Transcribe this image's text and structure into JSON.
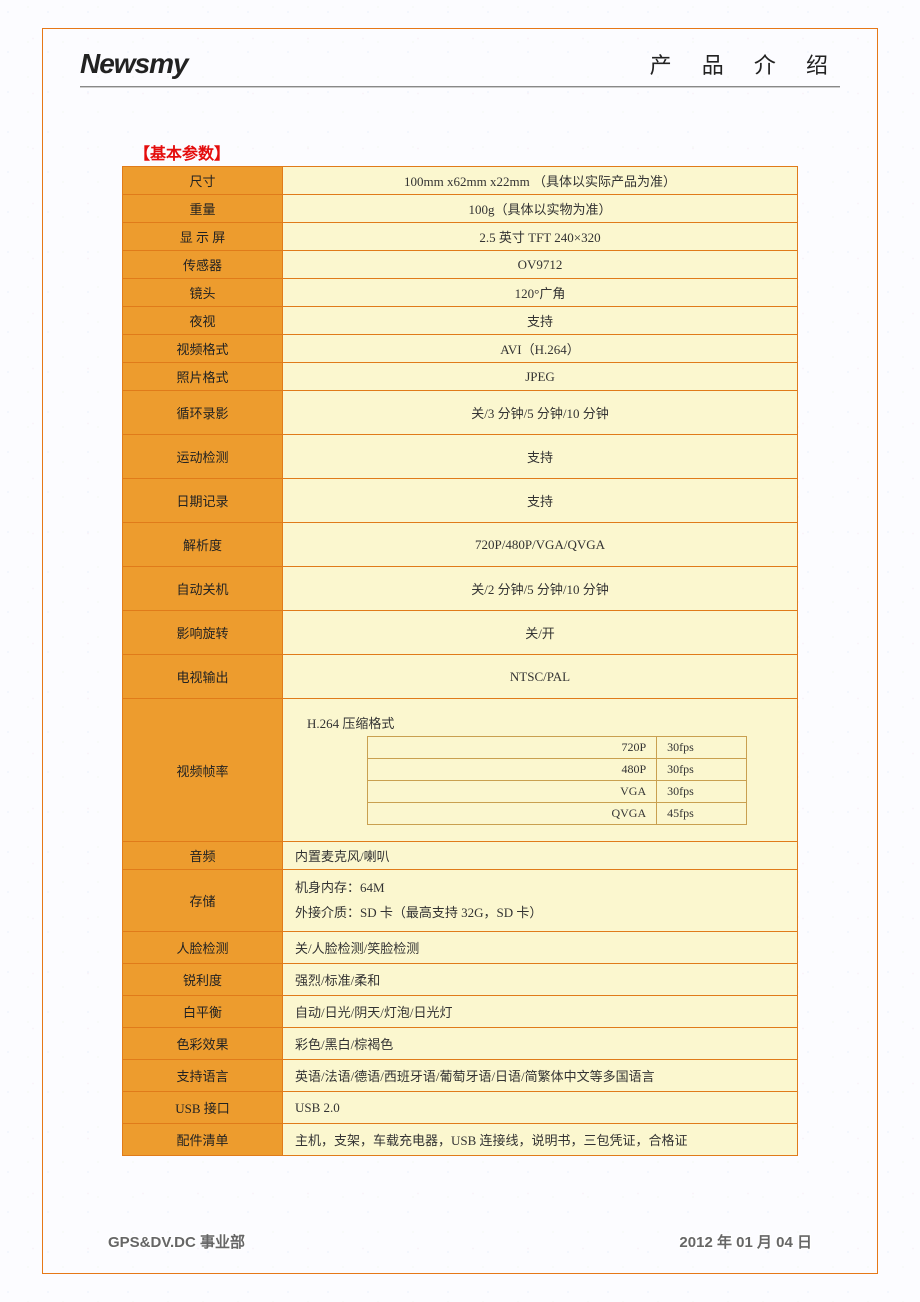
{
  "header": {
    "brand": "Newsmy",
    "title": "产 品 介 绍"
  },
  "section_title": "【基本参数】",
  "specs": [
    {
      "label": "尺寸",
      "value": "100mm x62mm x22mm （具体以实际产品为准）",
      "height": "short"
    },
    {
      "label": "重量",
      "value": "100g（具体以实物为准）",
      "height": "short"
    },
    {
      "label": "显 示 屏",
      "value": "2.5 英寸 TFT 240×320",
      "height": "short"
    },
    {
      "label": "传感器",
      "value": "OV9712",
      "height": "short"
    },
    {
      "label": "镜头",
      "value": "120°广角",
      "height": "short"
    },
    {
      "label": "夜视",
      "value": "支持",
      "height": "short"
    },
    {
      "label": "视频格式",
      "value": "AVI（H.264）",
      "height": "short"
    },
    {
      "label": "照片格式",
      "value": "JPEG",
      "height": "short"
    },
    {
      "label": "循环录影",
      "value": "关/3 分钟/5 分钟/10 分钟",
      "height": "tall"
    },
    {
      "label": "运动检测",
      "value": "支持",
      "height": "tall"
    },
    {
      "label": "日期记录",
      "value": "支持",
      "height": "tall"
    },
    {
      "label": "解析度",
      "value": "720P/480P/VGA/QVGA",
      "height": "tall"
    },
    {
      "label": "自动关机",
      "value": "关/2 分钟/5 分钟/10 分钟",
      "height": "tall"
    },
    {
      "label": "影响旋转",
      "value": "关/开",
      "height": "tall"
    },
    {
      "label": "电视输出",
      "value": "NTSC/PAL",
      "height": "tall"
    }
  ],
  "framerate": {
    "label": "视频帧率",
    "title": "H.264 压缩格式",
    "rows": [
      {
        "res": "720P",
        "fps": "30fps"
      },
      {
        "res": "480P",
        "fps": "30fps"
      },
      {
        "res": "VGA",
        "fps": "30fps"
      },
      {
        "res": "QVGA",
        "fps": "45fps"
      }
    ]
  },
  "specs2": [
    {
      "label": "音频",
      "value": "内置麦克风/喇叭"
    }
  ],
  "storage": {
    "label": "存储",
    "line1": "机身内存：64M",
    "line2": "外接介质：SD 卡（最高支持 32G，SD 卡）"
  },
  "specs3": [
    {
      "label": "人脸检测",
      "value": "关/人脸检测/笑脸检测"
    },
    {
      "label": "锐利度",
      "value": "强烈/标准/柔和"
    },
    {
      "label": "白平衡",
      "value": "自动/日光/阴天/灯泡/日光灯"
    },
    {
      "label": "色彩效果",
      "value": "彩色/黑白/棕褐色"
    },
    {
      "label": "支持语言",
      "value": "英语/法语/德语/西班牙语/葡萄牙语/日语/简繁体中文等多国语言"
    },
    {
      "label": "USB 接口",
      "value": "USB 2.0"
    },
    {
      "label": "配件清单",
      "value": "主机，支架，车载充电器，USB 连接线，说明书，三包凭证，合格证"
    }
  ],
  "footer": {
    "left": "GPS&DV.DC 事业部",
    "right": "2012 年 01 月 04 日"
  },
  "colors": {
    "border": "#e67817",
    "label_bg": "#ed9c2e",
    "value_bg": "#fbf7cf",
    "title_red": "#e40d0d"
  }
}
